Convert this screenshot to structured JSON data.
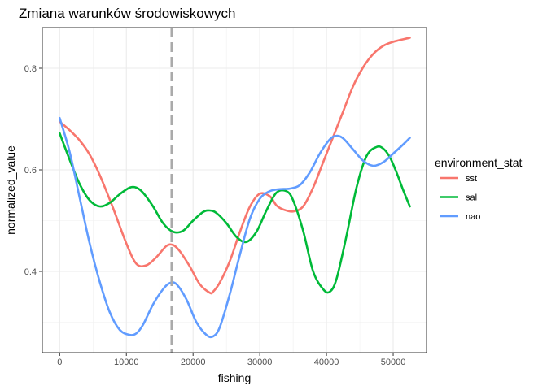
{
  "chart_data": {
    "type": "line",
    "title": "Zmiana warunków środowiskowych",
    "xlabel": "fishing",
    "ylabel": "normalized_value",
    "xlim": [
      -2600,
      55000
    ],
    "ylim": [
      0.24,
      0.88
    ],
    "x_ticks": [
      0,
      10000,
      20000,
      30000,
      40000,
      50000
    ],
    "x_tick_labels": [
      "0",
      "10000",
      "20000",
      "30000",
      "40000",
      "50000"
    ],
    "y_ticks": [
      0.4,
      0.6,
      0.8
    ],
    "y_tick_labels": [
      "0.4",
      "0.6",
      "0.8"
    ],
    "grid": true,
    "legend": {
      "title": "environment_stat",
      "position": "right"
    },
    "vline": {
      "x": 16800,
      "style": "dashed",
      "color": "#aaaaaa"
    },
    "series": [
      {
        "name": "sst",
        "color": "#F8766D",
        "x": [
          0,
          1500,
          3000,
          4500,
          6000,
          8000,
          10000,
          11500,
          13000,
          14500,
          16000,
          17000,
          18000,
          19500,
          21000,
          22500,
          23000,
          24000,
          25500,
          27000,
          28500,
          30000,
          31500,
          32500,
          33500,
          35000,
          36500,
          38000,
          39500,
          41000,
          42500,
          44000,
          45500,
          47000,
          48500,
          50000,
          51500,
          52500
        ],
        "y": [
          0.695,
          0.678,
          0.658,
          0.63,
          0.59,
          0.525,
          0.455,
          0.415,
          0.412,
          0.428,
          0.45,
          0.452,
          0.44,
          0.41,
          0.375,
          0.358,
          0.36,
          0.378,
          0.42,
          0.477,
          0.527,
          0.553,
          0.548,
          0.53,
          0.522,
          0.518,
          0.528,
          0.565,
          0.615,
          0.665,
          0.715,
          0.765,
          0.802,
          0.828,
          0.844,
          0.852,
          0.857,
          0.86
        ]
      },
      {
        "name": "sal",
        "color": "#00BA38",
        "x": [
          0,
          1500,
          3000,
          4500,
          6000,
          7500,
          9000,
          10500,
          11500,
          12500,
          14000,
          15500,
          17000,
          18500,
          20000,
          21500,
          22500,
          23500,
          25000,
          26500,
          28000,
          29500,
          31000,
          32500,
          34000,
          35000,
          36500,
          38000,
          39500,
          40500,
          41500,
          43000,
          44500,
          46000,
          47500,
          48500,
          49500,
          50500,
          51500,
          52500
        ],
        "y": [
          0.672,
          0.62,
          0.572,
          0.54,
          0.528,
          0.535,
          0.552,
          0.565,
          0.565,
          0.555,
          0.528,
          0.495,
          0.478,
          0.48,
          0.5,
          0.517,
          0.52,
          0.515,
          0.495,
          0.468,
          0.458,
          0.478,
          0.52,
          0.555,
          0.558,
          0.54,
          0.48,
          0.4,
          0.365,
          0.36,
          0.385,
          0.47,
          0.565,
          0.627,
          0.645,
          0.642,
          0.625,
          0.595,
          0.56,
          0.528
        ]
      },
      {
        "name": "nao",
        "color": "#619CFF",
        "x": [
          0,
          1500,
          3000,
          4500,
          6000,
          7500,
          9000,
          10500,
          11500,
          12500,
          14000,
          15500,
          16500,
          17500,
          19000,
          20500,
          22000,
          23000,
          24000,
          25500,
          27000,
          28500,
          30000,
          31500,
          33000,
          34500,
          36000,
          37500,
          39000,
          40500,
          41500,
          42500,
          44000,
          45500,
          47000,
          48500,
          50000,
          51500,
          52500
        ],
        "y": [
          0.702,
          0.635,
          0.545,
          0.455,
          0.38,
          0.32,
          0.285,
          0.275,
          0.278,
          0.295,
          0.335,
          0.365,
          0.377,
          0.375,
          0.345,
          0.3,
          0.275,
          0.272,
          0.29,
          0.355,
          0.432,
          0.503,
          0.543,
          0.558,
          0.562,
          0.563,
          0.57,
          0.595,
          0.632,
          0.66,
          0.667,
          0.662,
          0.64,
          0.618,
          0.608,
          0.615,
          0.632,
          0.65,
          0.663
        ]
      }
    ]
  }
}
